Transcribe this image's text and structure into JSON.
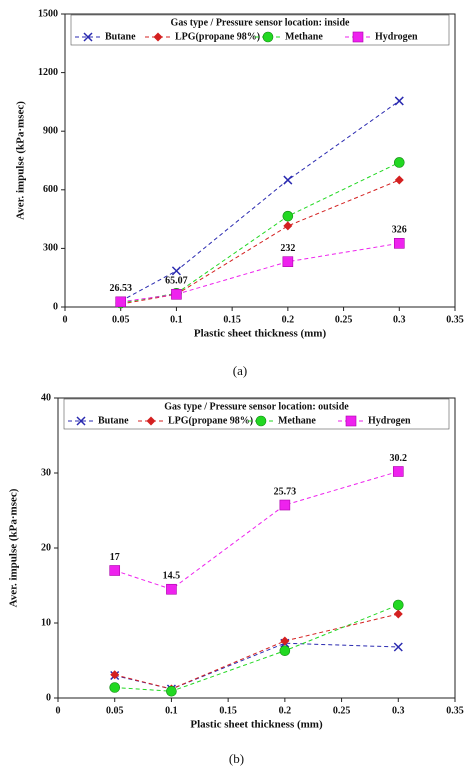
{
  "chart_data": [
    {
      "type": "line",
      "title": "Gas type / Pressure sensor location: inside",
      "xlabel": "Plastic sheet thickness (mm)",
      "ylabel": "Aver. impulse (kPa·msec)",
      "caption": "(a)",
      "x": [
        0.05,
        0.1,
        0.2,
        0.3
      ],
      "series": [
        {
          "name": "Butane",
          "color": "#2a2ab0",
          "marker": "x",
          "values": [
            30,
            185,
            650,
            1055
          ]
        },
        {
          "name": "LPG(propane 98%)",
          "color": "#d42020",
          "marker": "diamond",
          "values": [
            15,
            65,
            415,
            650
          ]
        },
        {
          "name": "Methane",
          "color": "#22d822",
          "marker": "circle",
          "values": [
            20,
            70,
            465,
            740
          ]
        },
        {
          "name": "Hydrogen",
          "color": "#ee22ee",
          "marker": "square",
          "values": [
            26.53,
            65.07,
            232,
            326
          ],
          "show_values": true
        }
      ],
      "xlim": [
        0,
        0.35
      ],
      "xticks": [
        0,
        0.05,
        0.1,
        0.15,
        0.2,
        0.25,
        0.3,
        0.35
      ],
      "ylim": [
        0,
        1500
      ],
      "yticks": [
        0,
        300,
        600,
        900,
        1200,
        1500
      ]
    },
    {
      "type": "line",
      "title": "Gas type / Pressure sensor location: outside",
      "xlabel": "Plastic sheet thickness (mm)",
      "ylabel": "Aver. impulse (kPa·msec)",
      "caption": "(b)",
      "x": [
        0.05,
        0.1,
        0.2,
        0.3
      ],
      "series": [
        {
          "name": "Butane",
          "color": "#2a2ab0",
          "marker": "x",
          "values": [
            3.0,
            1.2,
            7.3,
            6.8
          ]
        },
        {
          "name": "LPG(propane 98%)",
          "color": "#d42020",
          "marker": "diamond",
          "values": [
            3.1,
            1.2,
            7.6,
            11.2
          ]
        },
        {
          "name": "Methane",
          "color": "#22d822",
          "marker": "circle",
          "values": [
            1.4,
            0.9,
            6.3,
            12.4
          ]
        },
        {
          "name": "Hydrogen",
          "color": "#ee22ee",
          "marker": "square",
          "values": [
            17,
            14.5,
            25.73,
            30.2
          ],
          "show_values": true
        }
      ],
      "xlim": [
        0,
        0.35
      ],
      "xticks": [
        0,
        0.05,
        0.1,
        0.15,
        0.2,
        0.25,
        0.3,
        0.35
      ],
      "ylim": [
        0,
        40
      ],
      "yticks": [
        0,
        10,
        20,
        30,
        40
      ]
    }
  ]
}
